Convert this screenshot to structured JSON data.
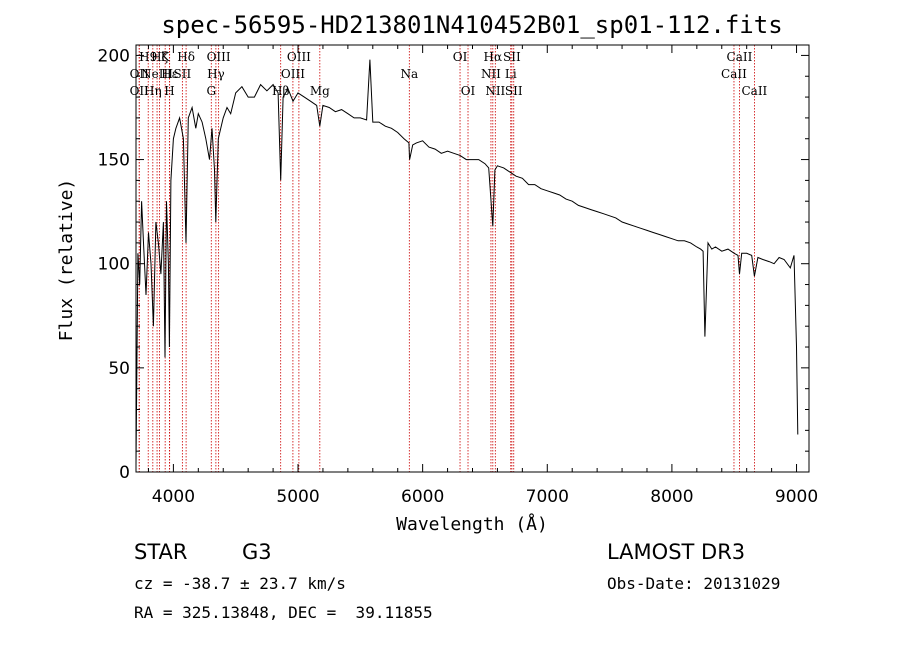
{
  "chart_data": {
    "type": "line",
    "title": "spec-56595-HD213801N410452B01_sp01-112.fits",
    "xlabel": "Wavelength (Å)",
    "ylabel": "Flux (relative)",
    "xlim": [
      3700,
      9100
    ],
    "ylim": [
      0,
      205
    ],
    "xticks": [
      4000,
      5000,
      6000,
      7000,
      8000,
      9000
    ],
    "yticks": [
      0,
      50,
      100,
      150,
      200
    ],
    "series": [
      {
        "name": "flux",
        "x": [
          3700,
          3715,
          3730,
          3745,
          3760,
          3780,
          3800,
          3820,
          3840,
          3860,
          3880,
          3900,
          3920,
          3933,
          3945,
          3960,
          3968,
          3980,
          4000,
          4020,
          4050,
          4080,
          4101,
          4120,
          4150,
          4180,
          4200,
          4230,
          4260,
          4290,
          4310,
          4330,
          4340,
          4360,
          4400,
          4430,
          4460,
          4500,
          4550,
          4600,
          4650,
          4700,
          4750,
          4800,
          4840,
          4861,
          4880,
          4920,
          4960,
          5000,
          5050,
          5100,
          5150,
          5175,
          5200,
          5250,
          5300,
          5350,
          5400,
          5450,
          5500,
          5550,
          5577,
          5600,
          5650,
          5700,
          5750,
          5800,
          5850,
          5890,
          5895,
          5920,
          5950,
          6000,
          6050,
          6100,
          6150,
          6200,
          6250,
          6300,
          6350,
          6400,
          6450,
          6500,
          6530,
          6563,
          6580,
          6600,
          6650,
          6700,
          6750,
          6800,
          6850,
          6900,
          6950,
          7000,
          7050,
          7100,
          7150,
          7200,
          7250,
          7300,
          7350,
          7400,
          7450,
          7500,
          7550,
          7600,
          7650,
          7700,
          7750,
          7800,
          7850,
          7900,
          7950,
          8000,
          8050,
          8100,
          8150,
          8200,
          8230,
          8250,
          8265,
          8290,
          8320,
          8350,
          8400,
          8450,
          8500,
          8530,
          8542,
          8560,
          8600,
          8640,
          8662,
          8690,
          8730,
          8780,
          8820,
          8860,
          8900,
          8950,
          8980,
          9000,
          9010
        ],
        "y": [
          3,
          105,
          90,
          130,
          110,
          85,
          115,
          100,
          70,
          120,
          110,
          95,
          120,
          55,
          130,
          100,
          60,
          140,
          160,
          165,
          170,
          160,
          110,
          170,
          175,
          165,
          172,
          168,
          160,
          150,
          165,
          145,
          120,
          160,
          170,
          175,
          172,
          182,
          185,
          180,
          180,
          186,
          183,
          186,
          182,
          140,
          180,
          184,
          178,
          182,
          180,
          178,
          176,
          166,
          176,
          175,
          173,
          174,
          172,
          170,
          170,
          169,
          198,
          168,
          168,
          166,
          165,
          163,
          160,
          158,
          150,
          157,
          158,
          159,
          156,
          155,
          153,
          154,
          153,
          152,
          150,
          150,
          150,
          148,
          146,
          118,
          145,
          147,
          146,
          144,
          142,
          141,
          138,
          138,
          136,
          135,
          134,
          133,
          131,
          130,
          128,
          127,
          126,
          125,
          124,
          123,
          122,
          120,
          119,
          118,
          117,
          116,
          115,
          114,
          113,
          112,
          111,
          111,
          110,
          108,
          107,
          106,
          65,
          110,
          107,
          108,
          106,
          107,
          105,
          104,
          95,
          105,
          105,
          104,
          94,
          103,
          102,
          101,
          100,
          103,
          102,
          98,
          104,
          60,
          18
        ]
      }
    ],
    "line_marks": [
      {
        "w": 3798,
        "label": "H9",
        "row": 0
      },
      {
        "w": 3726,
        "label": "OII",
        "row": 1
      },
      {
        "w": 3869,
        "label": "NeIII",
        "row": 1
      },
      {
        "w": 3726,
        "label": "OII",
        "row": 2
      },
      {
        "w": 3835,
        "label": "Hη",
        "row": 2
      },
      {
        "w": 3889,
        "label": "Hζ",
        "row": 0
      },
      {
        "w": 3934,
        "label": "K",
        "row": 0
      },
      {
        "w": 3969,
        "label": "H",
        "row": 2
      },
      {
        "w": 3970,
        "label": "Hε",
        "row": 1
      },
      {
        "w": 4072,
        "label": "SII",
        "row": 1
      },
      {
        "w": 4102,
        "label": "Hδ",
        "row": 0
      },
      {
        "w": 4304,
        "label": "G",
        "row": 2
      },
      {
        "w": 4341,
        "label": "Hγ",
        "row": 1
      },
      {
        "w": 4363,
        "label": "OIII",
        "row": 0
      },
      {
        "w": 4861,
        "label": "Hβ",
        "row": 2
      },
      {
        "w": 4959,
        "label": "OIII",
        "row": 1
      },
      {
        "w": 5007,
        "label": "OIII",
        "row": 0
      },
      {
        "w": 5175,
        "label": "Mg",
        "row": 2
      },
      {
        "w": 5893,
        "label": "Na",
        "row": 1
      },
      {
        "w": 6300,
        "label": "OI",
        "row": 0
      },
      {
        "w": 6364,
        "label": "OI",
        "row": 2
      },
      {
        "w": 6548,
        "label": "NII",
        "row": 1
      },
      {
        "w": 6563,
        "label": "Hα",
        "row": 0
      },
      {
        "w": 6583,
        "label": "NII",
        "row": 2
      },
      {
        "w": 6707,
        "label": "Li",
        "row": 1
      },
      {
        "w": 6716,
        "label": "SII",
        "row": 0
      },
      {
        "w": 6731,
        "label": "SII",
        "row": 2
      },
      {
        "w": 8498,
        "label": "CaII",
        "row": 1
      },
      {
        "w": 8542,
        "label": "CaII",
        "row": 0
      },
      {
        "w": 8662,
        "label": "CaII",
        "row": 2
      }
    ]
  },
  "footer": {
    "object_class": "STAR",
    "subclass": "G3",
    "survey": "LAMOST DR3",
    "redshift": "cz = -38.7 ± 23.7 km/s",
    "obs_date": "Obs-Date: 20131029",
    "coords": "RA = 325.13848, DEC =  39.11855"
  },
  "colors": {
    "line_mark": "#cc0000",
    "spectrum": "#000000",
    "axes": "#000000"
  }
}
